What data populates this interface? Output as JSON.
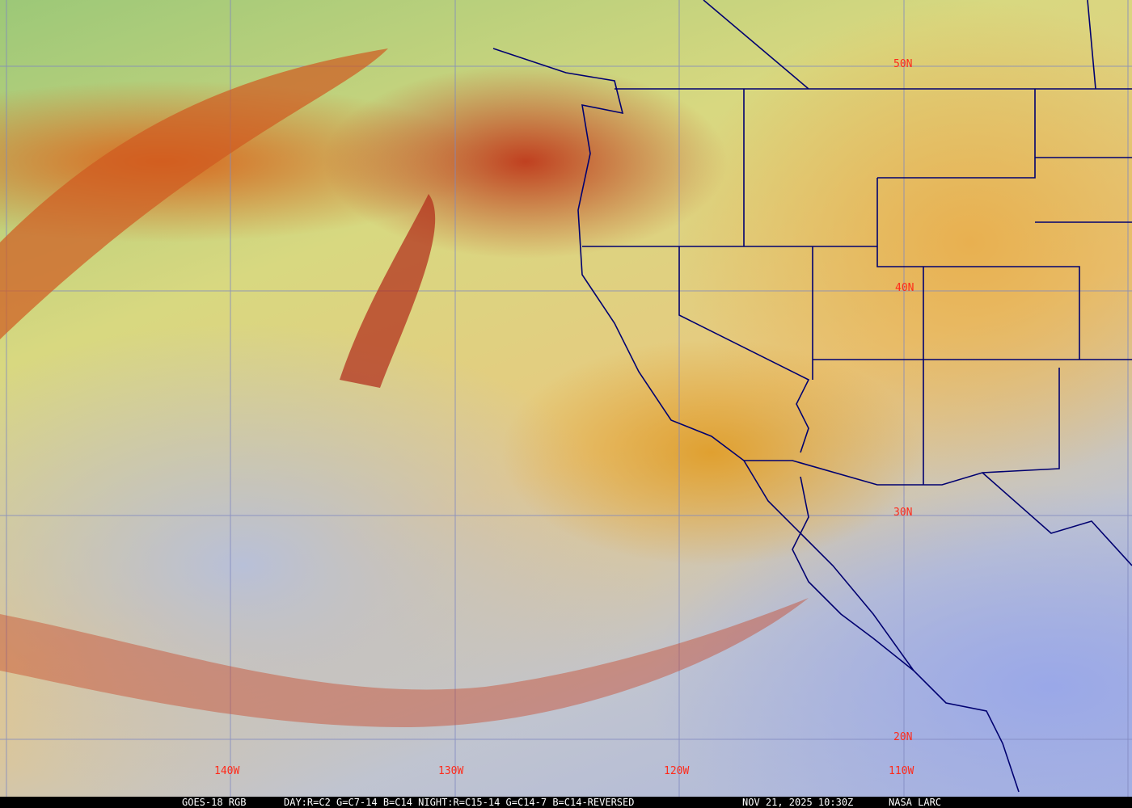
{
  "latitude_labels": [
    "50N",
    "40N",
    "30N",
    "20N"
  ],
  "longitude_labels": [
    "140W",
    "130W",
    "120W",
    "110W"
  ],
  "footer": {
    "satellite": "GOES-18 RGB",
    "recipe": "DAY:R=C2 G=C7-14 B=C14 NIGHT:R=C15-14 G=C14-7 B=C14-REVERSED",
    "timestamp": "NOV 21, 2025 10:30Z",
    "credit": "NASA LARC"
  },
  "colors": {
    "grid": "#8088c0",
    "labels": "#ff2a1a",
    "borders": "#000070"
  }
}
